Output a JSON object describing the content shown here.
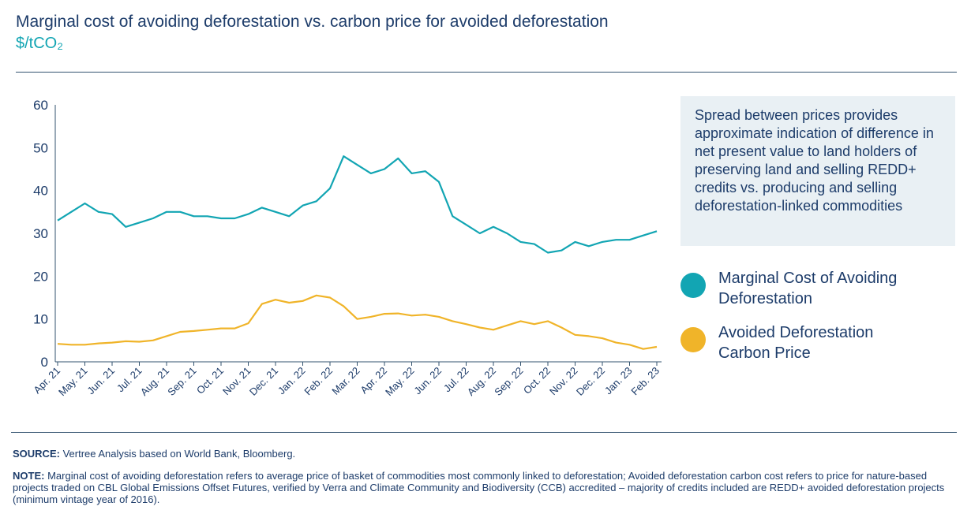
{
  "chart_data": {
    "type": "line",
    "title": "Marginal cost of avoiding deforestation vs. carbon price for avoided deforestation",
    "subtitle": "$/tCO₂",
    "x": [
      "Apr. 21",
      null,
      "May. 21",
      null,
      "Jun. 21",
      null,
      "Jul. 21",
      null,
      "Aug. 21",
      null,
      "Sep. 21",
      null,
      "Oct. 21",
      null,
      "Nov. 21",
      null,
      "Dec. 21",
      null,
      "Jan. 22",
      null,
      "Feb. 22",
      null,
      "Mar. 22",
      null,
      "Apr. 22",
      null,
      "May. 22",
      null,
      "Jun. 22",
      null,
      "Jul. 22",
      null,
      "Aug. 22",
      null,
      "Sep. 22",
      null,
      "Oct. 22",
      null,
      "Nov. 22",
      null,
      "Dec. 22",
      null,
      "Jan. 23",
      null,
      "Feb. 23"
    ],
    "series": [
      {
        "name": "Marginal Cost of Avoiding Deforestation",
        "color": "#12a5b3",
        "values": [
          33,
          35,
          37,
          35,
          34.5,
          31.5,
          32.5,
          33.5,
          35,
          35,
          34,
          34,
          33.5,
          33.5,
          34.5,
          36,
          35,
          34,
          36.5,
          37.5,
          40.5,
          48,
          46,
          44,
          45,
          47.5,
          44,
          44.5,
          42,
          34,
          32,
          30,
          31.5,
          30,
          28,
          27.5,
          25.5,
          26,
          28,
          27,
          28,
          28.5,
          28.5,
          29.5,
          30.5
        ]
      },
      {
        "name": "Avoided Deforestation Carbon Price",
        "color": "#f0b429",
        "values": [
          4.2,
          4,
          4,
          4.3,
          4.5,
          4.8,
          4.7,
          5,
          6,
          7,
          7.2,
          7.5,
          7.8,
          7.8,
          9,
          13.5,
          14.5,
          13.8,
          14.2,
          15.5,
          15,
          13,
          10,
          10.5,
          11.2,
          11.3,
          10.8,
          11,
          10.5,
          9.5,
          8.8,
          8,
          7.5,
          8.5,
          9.5,
          8.8,
          9.5,
          8,
          6.3,
          6,
          5.5,
          4.5,
          4,
          3,
          3.5
        ]
      }
    ],
    "ylim": [
      0,
      60
    ],
    "yticks": [
      0,
      10,
      20,
      30,
      40,
      50,
      60
    ],
    "grid": false,
    "annotation": "Spread between prices provides approximate indication of difference in net present value to land holders of preserving land and selling REDD+ credits vs. producing and selling deforestation-linked commodities"
  },
  "source": {
    "label": "SOURCE:",
    "text": "Vertree Analysis based on World Bank, Bloomberg."
  },
  "note": {
    "label": "NOTE:",
    "text": "Marginal cost of avoiding deforestation refers to average price of basket of commodities most commonly linked to deforestation; Avoided deforestation carbon cost refers to price for nature-based projects traded on CBL Global Emissions Offset Futures, verified by Verra and Climate Community and Biodiversity (CCB) accredited – majority of credits included are REDD+ avoided deforestation projects (minimum vintage year of 2016)."
  }
}
